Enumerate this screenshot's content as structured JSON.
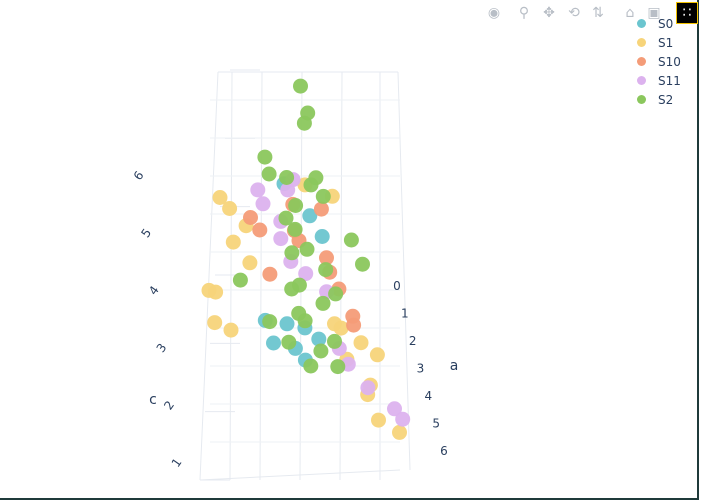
{
  "modebar": {
    "icons": [
      "camera-icon",
      "zoom-icon",
      "pan-icon",
      "orbit-icon",
      "turntable-icon",
      "home-icon",
      "camera-view-icon",
      "plotly-logo-icon"
    ]
  },
  "legend": {
    "items": [
      {
        "label": "S0",
        "color": "#6bc5cf"
      },
      {
        "label": "S1",
        "color": "#f7d47a"
      },
      {
        "label": "S10",
        "color": "#f49c78"
      },
      {
        "label": "S11",
        "color": "#dcb2ee"
      },
      {
        "label": "S2",
        "color": "#8bc75d"
      }
    ]
  },
  "chart_data": {
    "type": "scatter",
    "dimensions": 3,
    "axes": {
      "a": {
        "label": "a",
        "ticks": [
          "0",
          "1",
          "2",
          "3",
          "4",
          "5",
          "6"
        ],
        "range": [
          0,
          6
        ]
      },
      "c": {
        "label": "c",
        "ticks": [
          "1",
          "2",
          "3",
          "4",
          "5",
          "6"
        ],
        "range": [
          1,
          6
        ]
      }
    },
    "series": [
      {
        "name": "S0",
        "color": "#6bc5cf",
        "points": [
          [
            2.2,
            3.6
          ],
          [
            2.4,
            3.4
          ],
          [
            2.0,
            3.2
          ],
          [
            2.6,
            3.0
          ],
          [
            2.1,
            5.7
          ],
          [
            2.5,
            5.3
          ],
          [
            2.8,
            3.3
          ],
          [
            1.9,
            3.5
          ],
          [
            2.7,
            5.0
          ],
          [
            2.3,
            3.1
          ]
        ]
      },
      {
        "name": "S1",
        "color": "#f7d47a",
        "points": [
          [
            1.0,
            5.6
          ],
          [
            1.2,
            5.3
          ],
          [
            1.4,
            4.9
          ],
          [
            1.6,
            4.5
          ],
          [
            0.8,
            4.0
          ],
          [
            3.0,
            3.6
          ],
          [
            3.2,
            3.4
          ],
          [
            3.4,
            3.2
          ],
          [
            3.5,
            2.6
          ],
          [
            3.6,
            2.3
          ],
          [
            3.8,
            2.0
          ],
          [
            4.0,
            1.8
          ],
          [
            2.9,
            5.5
          ],
          [
            1.1,
            4.1
          ],
          [
            1.3,
            3.4
          ],
          [
            3.1,
            2.9
          ],
          [
            3.7,
            3.1
          ],
          [
            2.6,
            5.7
          ],
          [
            1.5,
            5.1
          ],
          [
            0.9,
            3.6
          ]
        ]
      },
      {
        "name": "S10",
        "color": "#f49c78",
        "points": [
          [
            1.5,
            5.2
          ],
          [
            1.8,
            5.0
          ],
          [
            2.4,
            5.1
          ],
          [
            2.7,
            5.3
          ],
          [
            2.8,
            4.6
          ],
          [
            3.0,
            4.4
          ],
          [
            3.1,
            4.0
          ],
          [
            3.2,
            3.7
          ],
          [
            3.3,
            3.5
          ],
          [
            2.5,
            4.8
          ],
          [
            1.9,
            4.4
          ],
          [
            2.2,
            5.4
          ]
        ]
      },
      {
        "name": "S11",
        "color": "#dcb2ee",
        "points": [
          [
            1.7,
            5.6
          ],
          [
            1.9,
            5.5
          ],
          [
            2.2,
            5.7
          ],
          [
            2.0,
            5.1
          ],
          [
            2.3,
            4.6
          ],
          [
            2.6,
            4.3
          ],
          [
            2.8,
            4.0
          ],
          [
            3.0,
            3.2
          ],
          [
            3.3,
            2.8
          ],
          [
            3.6,
            2.5
          ],
          [
            3.9,
            2.2
          ],
          [
            4.1,
            1.9
          ],
          [
            2.4,
            5.9
          ],
          [
            2.1,
            4.9
          ]
        ]
      },
      {
        "name": "S2",
        "color": "#8bc75d",
        "points": [
          [
            2.5,
            7.3
          ],
          [
            2.6,
            7.0
          ],
          [
            2.4,
            6.7
          ],
          [
            1.8,
            6.2
          ],
          [
            2.0,
            6.0
          ],
          [
            2.2,
            5.8
          ],
          [
            2.5,
            5.8
          ],
          [
            2.7,
            5.9
          ],
          [
            2.9,
            5.5
          ],
          [
            2.3,
            5.5
          ],
          [
            2.1,
            5.2
          ],
          [
            2.4,
            5.0
          ],
          [
            2.6,
            4.8
          ],
          [
            2.2,
            4.6
          ],
          [
            2.8,
            4.4
          ],
          [
            2.5,
            4.2
          ],
          [
            2.3,
            4.0
          ],
          [
            2.7,
            3.9
          ],
          [
            2.4,
            3.7
          ],
          [
            2.6,
            3.5
          ],
          [
            2.2,
            3.3
          ],
          [
            2.9,
            3.2
          ],
          [
            3.1,
            2.8
          ],
          [
            1.5,
            4.3
          ],
          [
            3.2,
            4.8
          ],
          [
            3.4,
            4.5
          ],
          [
            2.0,
            3.6
          ],
          [
            2.8,
            3.0
          ],
          [
            2.5,
            2.9
          ],
          [
            3.0,
            4.0
          ]
        ]
      }
    ]
  }
}
